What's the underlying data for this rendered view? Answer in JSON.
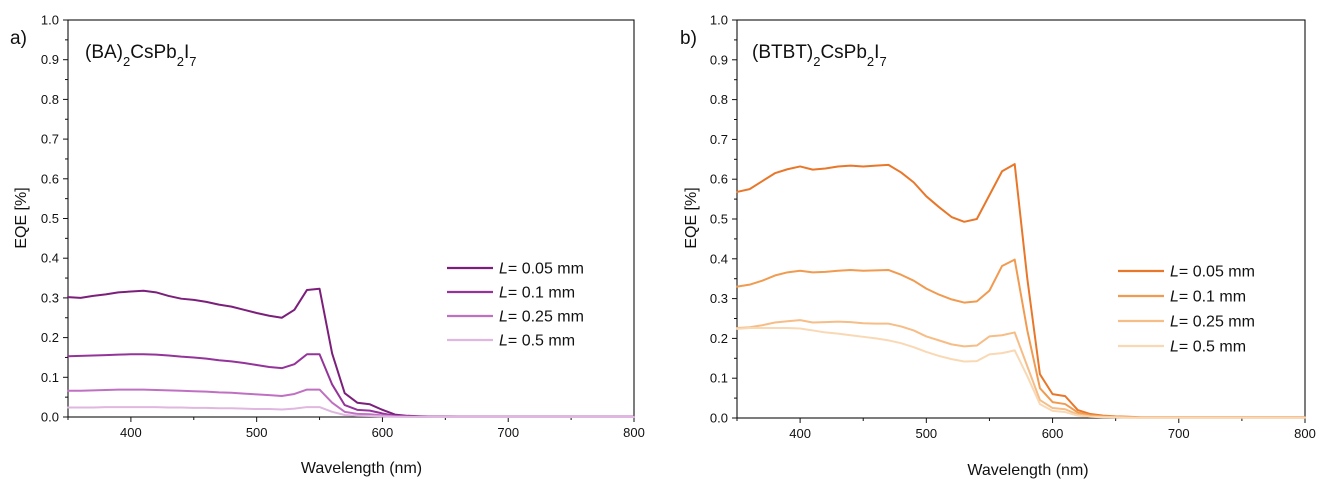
{
  "chart_data": [
    {
      "type": "line",
      "panel_label": "a)",
      "compound": {
        "base": "(BA)",
        "sub1": "2",
        "mid": "CsPb",
        "sub2": "2",
        "tail": "I",
        "sub3": "7"
      },
      "xlabel": "Wavelength (nm)",
      "ylabel": "EQE [%]",
      "xlim": [
        350,
        800
      ],
      "ylim": [
        0,
        1.0
      ],
      "xticks": [
        "400",
        "500",
        "600",
        "700",
        "800"
      ],
      "yticks": [
        "0.0",
        "0.1",
        "0.2",
        "0.3",
        "0.4",
        "0.5",
        "0.6",
        "0.7",
        "0.8",
        "0.9",
        "1.0"
      ],
      "grid": false,
      "legend_position": "right",
      "legend_var": "L",
      "x": [
        350,
        360,
        370,
        380,
        390,
        400,
        410,
        420,
        430,
        440,
        450,
        460,
        470,
        480,
        490,
        500,
        510,
        520,
        530,
        540,
        550,
        560,
        570,
        580,
        590,
        600,
        610,
        620,
        630,
        640,
        650,
        660,
        670,
        680,
        690,
        700,
        710,
        720,
        730,
        740,
        750,
        760,
        770,
        780,
        790,
        800
      ],
      "series": [
        {
          "name": "= 0.05 mm",
          "color": "#7b1f7b",
          "values": [
            0.302,
            0.3,
            0.305,
            0.309,
            0.314,
            0.316,
            0.318,
            0.314,
            0.305,
            0.298,
            0.295,
            0.29,
            0.283,
            0.278,
            0.27,
            0.262,
            0.255,
            0.25,
            0.27,
            0.32,
            0.323,
            0.16,
            0.06,
            0.036,
            0.032,
            0.018,
            0.006,
            0.003,
            0.002,
            0.001,
            0.001,
            0.0005,
            0.0005,
            0.0005,
            0.0005,
            0.0005,
            0.0005,
            0.0005,
            0.0005,
            0.0005,
            0.0005,
            0.0005,
            0.0005,
            0.0005,
            0.0005,
            0.0005
          ]
        },
        {
          "name": "= 0.1 mm",
          "color": "#94339a",
          "values": [
            0.153,
            0.154,
            0.155,
            0.156,
            0.157,
            0.158,
            0.158,
            0.157,
            0.155,
            0.152,
            0.15,
            0.147,
            0.143,
            0.14,
            0.136,
            0.131,
            0.126,
            0.123,
            0.133,
            0.158,
            0.158,
            0.082,
            0.03,
            0.018,
            0.016,
            0.009,
            0.003,
            0.0015,
            0.001,
            0.0005,
            0.0005,
            0.0003,
            0.0003,
            0.0003,
            0.0003,
            0.0003,
            0.0003,
            0.0003,
            0.0003,
            0.0003,
            0.0003,
            0.0003,
            0.0003,
            0.0003,
            0.0003,
            0.0003
          ]
        },
        {
          "name": "= 0.25 mm",
          "color": "#bf70c2",
          "values": [
            0.066,
            0.066,
            0.067,
            0.068,
            0.069,
            0.069,
            0.069,
            0.068,
            0.067,
            0.066,
            0.065,
            0.064,
            0.062,
            0.061,
            0.059,
            0.057,
            0.055,
            0.053,
            0.058,
            0.069,
            0.069,
            0.036,
            0.013,
            0.008,
            0.007,
            0.004,
            0.0015,
            0.0008,
            0.0005,
            0.0003,
            0.0003,
            0.0002,
            0.0002,
            0.0002,
            0.0002,
            0.0002,
            0.0002,
            0.0002,
            0.0002,
            0.0002,
            0.0002,
            0.0002,
            0.0002,
            0.0002,
            0.0002,
            0.0002
          ]
        },
        {
          "name": "= 0.5 mm",
          "color": "#dfb7e0",
          "values": [
            0.024,
            0.024,
            0.024,
            0.025,
            0.025,
            0.025,
            0.025,
            0.025,
            0.024,
            0.024,
            0.023,
            0.023,
            0.022,
            0.022,
            0.021,
            0.02,
            0.02,
            0.019,
            0.021,
            0.025,
            0.025,
            0.013,
            0.005,
            0.003,
            0.0025,
            0.0015,
            0.0006,
            0.0003,
            0.0002,
            0.0001,
            0.0001,
            0.0001,
            0.0001,
            0.0001,
            0.0001,
            0.0001,
            0.0001,
            0.0001,
            0.0001,
            0.0001,
            0.0001,
            0.0001,
            0.0001,
            0.0001,
            0.0001,
            0.0001
          ]
        }
      ]
    },
    {
      "type": "line",
      "panel_label": "b)",
      "compound": {
        "base": "(BTBT)",
        "sub1": "2",
        "mid": "CsPb",
        "sub2": "2",
        "tail": "I",
        "sub3": "7"
      },
      "xlabel": "Wavelength (nm)",
      "ylabel": "EQE [%]",
      "xlim": [
        350,
        800
      ],
      "ylim": [
        0,
        1.0
      ],
      "xticks": [
        "400",
        "500",
        "600",
        "700",
        "800"
      ],
      "yticks": [
        "0.0",
        "0.1",
        "0.2",
        "0.3",
        "0.4",
        "0.5",
        "0.6",
        "0.7",
        "0.8",
        "0.9",
        "1.0"
      ],
      "grid": false,
      "legend_position": "right",
      "legend_var": "L",
      "x": [
        350,
        360,
        370,
        380,
        390,
        400,
        410,
        420,
        430,
        440,
        450,
        460,
        470,
        480,
        490,
        500,
        510,
        520,
        530,
        540,
        550,
        560,
        570,
        580,
        590,
        600,
        610,
        620,
        630,
        640,
        650,
        660,
        670,
        680,
        690,
        700,
        710,
        720,
        730,
        740,
        750,
        760,
        770,
        780,
        790,
        800
      ],
      "series": [
        {
          "name": "= 0.05 mm",
          "color": "#e8772a",
          "values": [
            0.568,
            0.575,
            0.595,
            0.615,
            0.625,
            0.632,
            0.624,
            0.627,
            0.632,
            0.634,
            0.632,
            0.634,
            0.636,
            0.617,
            0.592,
            0.557,
            0.53,
            0.505,
            0.493,
            0.5,
            0.56,
            0.62,
            0.638,
            0.35,
            0.11,
            0.06,
            0.055,
            0.02,
            0.01,
            0.006,
            0.004,
            0.003,
            0.002,
            0.002,
            0.002,
            0.002,
            0.002,
            0.002,
            0.002,
            0.002,
            0.002,
            0.002,
            0.002,
            0.002,
            0.002,
            0.002
          ]
        },
        {
          "name": "= 0.1 mm",
          "color": "#f09b50",
          "values": [
            0.33,
            0.335,
            0.345,
            0.358,
            0.366,
            0.37,
            0.366,
            0.367,
            0.37,
            0.372,
            0.37,
            0.371,
            0.372,
            0.36,
            0.345,
            0.325,
            0.31,
            0.298,
            0.29,
            0.293,
            0.32,
            0.382,
            0.398,
            0.22,
            0.075,
            0.04,
            0.035,
            0.014,
            0.007,
            0.004,
            0.003,
            0.002,
            0.0015,
            0.0015,
            0.0015,
            0.0015,
            0.0015,
            0.0015,
            0.0015,
            0.0015,
            0.0015,
            0.0015,
            0.0015,
            0.0015,
            0.0015,
            0.0015
          ]
        },
        {
          "name": "= 0.25 mm",
          "color": "#f6bd86",
          "values": [
            0.226,
            0.228,
            0.233,
            0.24,
            0.243,
            0.246,
            0.24,
            0.241,
            0.242,
            0.241,
            0.238,
            0.237,
            0.237,
            0.23,
            0.22,
            0.205,
            0.195,
            0.185,
            0.18,
            0.182,
            0.205,
            0.208,
            0.215,
            0.13,
            0.045,
            0.025,
            0.022,
            0.009,
            0.004,
            0.003,
            0.002,
            0.0015,
            0.001,
            0.001,
            0.001,
            0.001,
            0.001,
            0.001,
            0.001,
            0.001,
            0.001,
            0.001,
            0.001,
            0.001,
            0.001,
            0.001
          ]
        },
        {
          "name": "= 0.5 mm",
          "color": "#f9d8b4",
          "values": [
            0.224,
            0.226,
            0.226,
            0.226,
            0.226,
            0.225,
            0.22,
            0.215,
            0.212,
            0.208,
            0.204,
            0.2,
            0.195,
            0.188,
            0.178,
            0.166,
            0.156,
            0.148,
            0.142,
            0.143,
            0.16,
            0.163,
            0.17,
            0.105,
            0.035,
            0.018,
            0.015,
            0.006,
            0.003,
            0.002,
            0.0015,
            0.001,
            0.001,
            0.001,
            0.001,
            0.001,
            0.001,
            0.001,
            0.001,
            0.001,
            0.001,
            0.001,
            0.001,
            0.001,
            0.001,
            0.001
          ]
        }
      ]
    }
  ]
}
